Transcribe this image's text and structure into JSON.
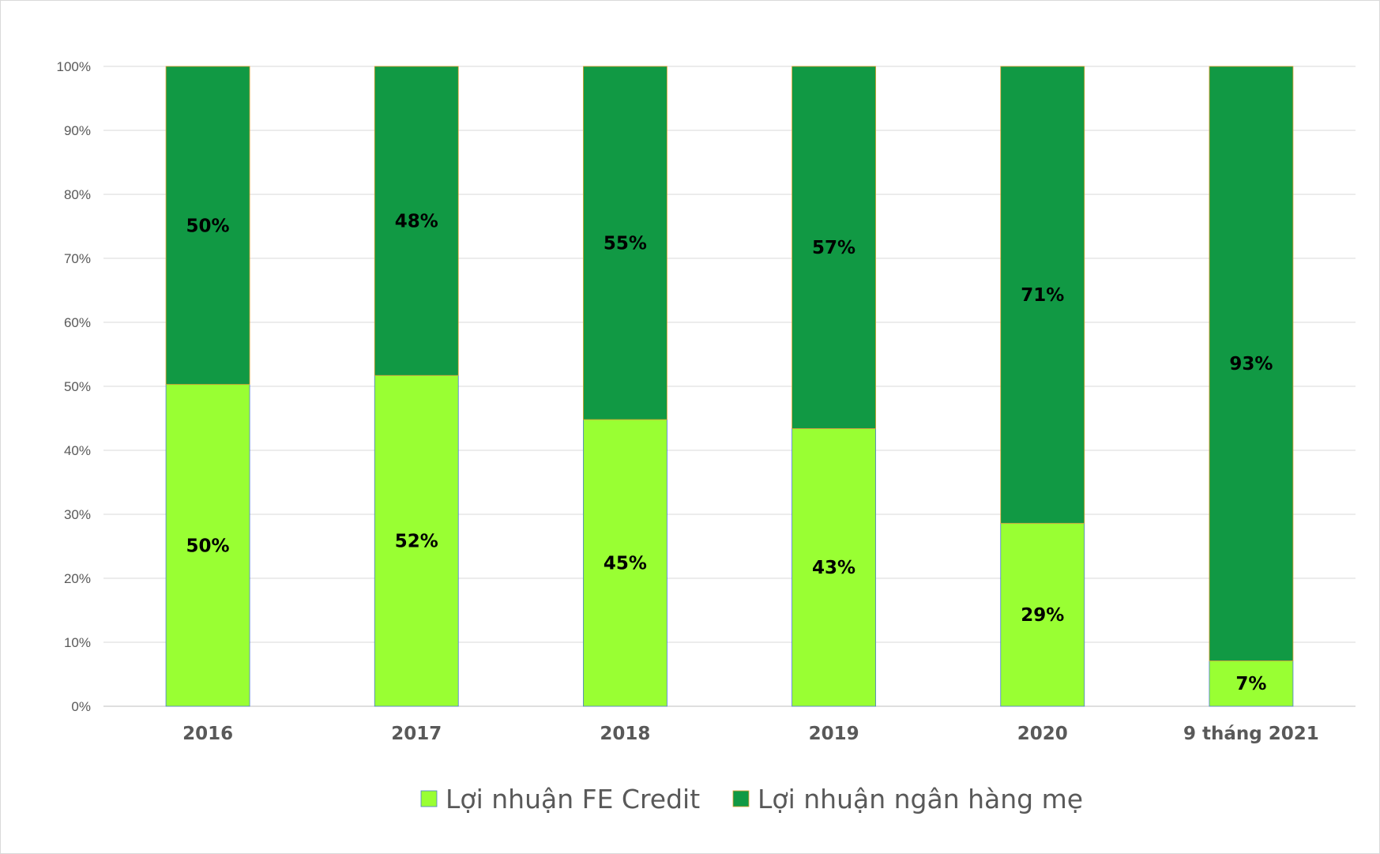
{
  "chart_data": {
    "type": "bar",
    "stacked": true,
    "percent_axis": true,
    "categories": [
      "2016",
      "2017",
      "2018",
      "2019",
      "2020",
      "9 tháng 2021"
    ],
    "series": [
      {
        "name": "Lợi nhuận FE Credit",
        "color": "#99ff33",
        "values": [
          50.3,
          51.7,
          44.8,
          43.4,
          28.6,
          7.1
        ],
        "labels": [
          "50%",
          "52%",
          "45%",
          "43%",
          "29%",
          "7%"
        ]
      },
      {
        "name": "Lợi nhuận ngân hàng mẹ",
        "color": "#119944",
        "values": [
          49.7,
          48.3,
          55.2,
          56.6,
          71.4,
          92.9
        ],
        "labels": [
          "50%",
          "48%",
          "55%",
          "57%",
          "71%",
          "93%"
        ]
      }
    ],
    "y_ticks": [
      "0%",
      "10%",
      "20%",
      "30%",
      "40%",
      "50%",
      "60%",
      "70%",
      "80%",
      "90%",
      "100%"
    ],
    "ylim": [
      0,
      100
    ],
    "grid": true,
    "legend_position": "bottom",
    "title": "",
    "xlabel": "",
    "ylabel": ""
  }
}
